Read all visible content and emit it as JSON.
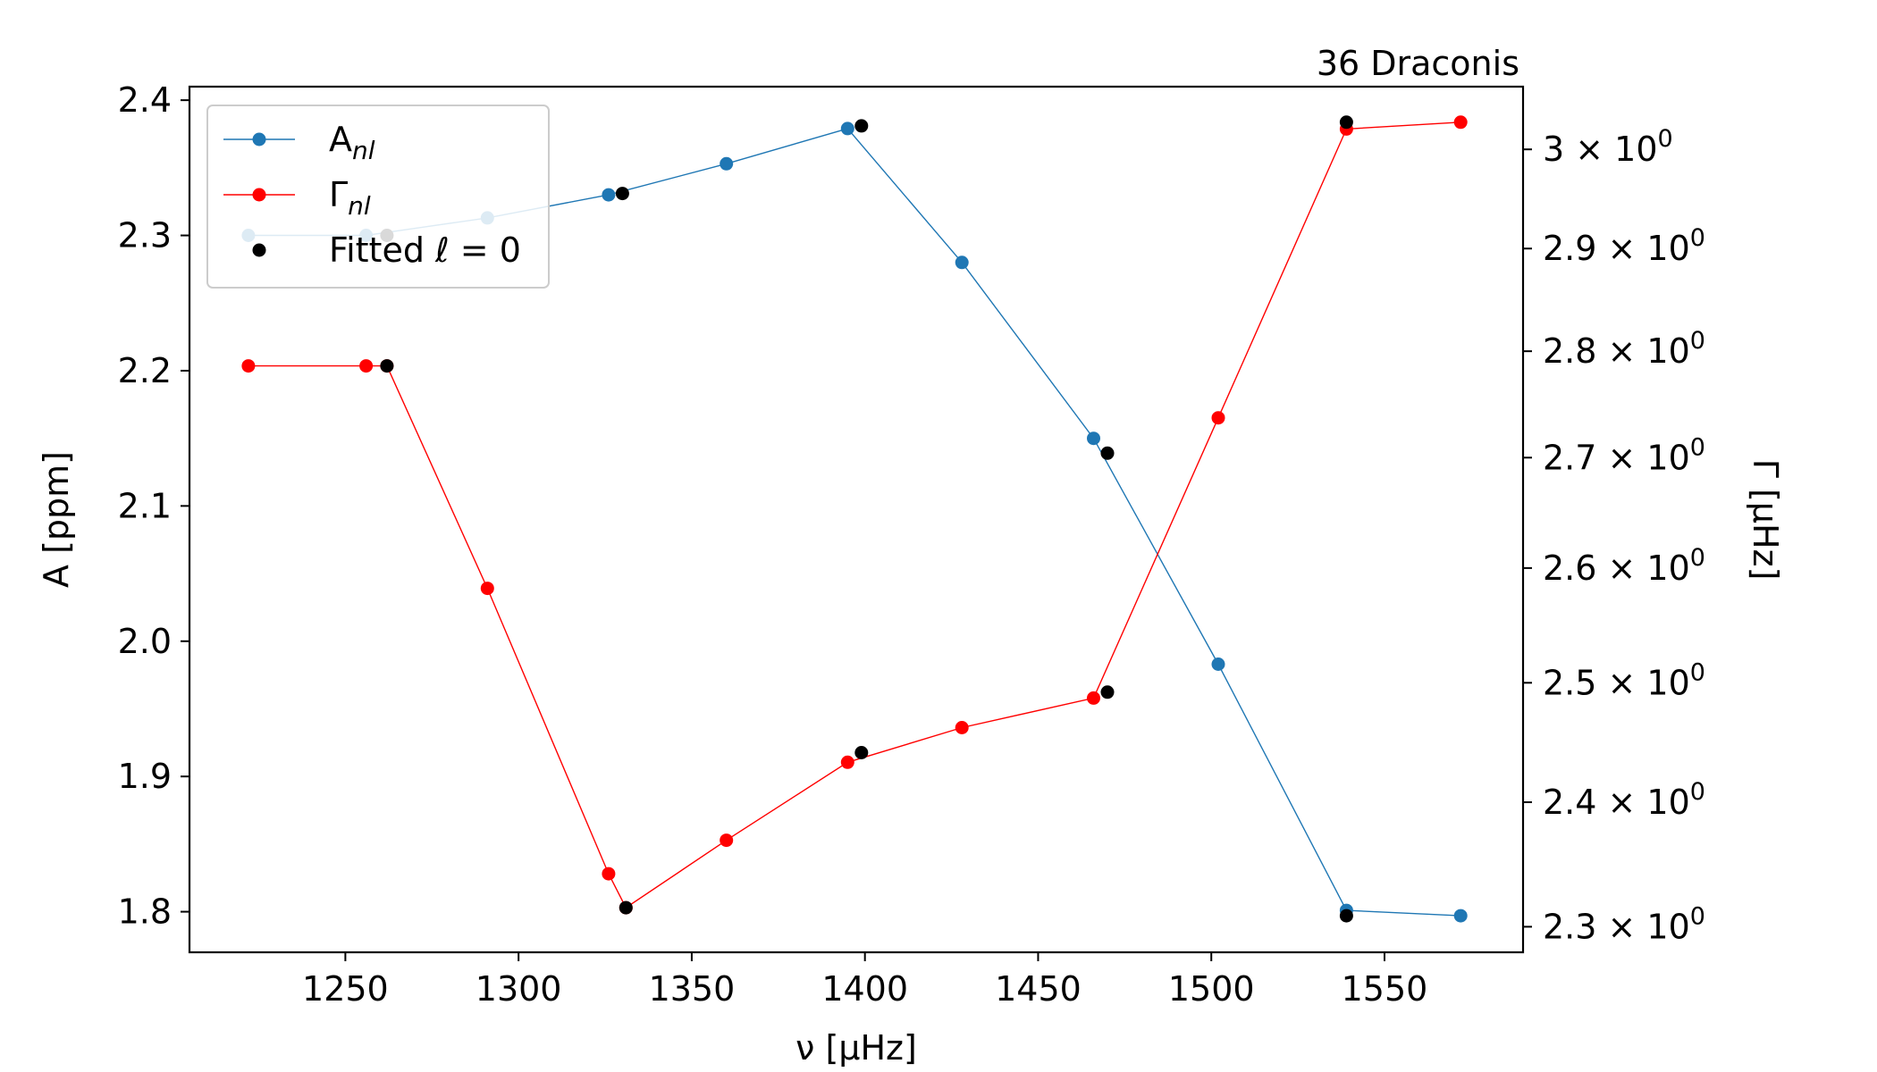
{
  "chart_data": {
    "type": "line",
    "title": "36 Draconis",
    "xlabel": "ν [μHz]",
    "ylabel_left": "A [ppm]",
    "ylabel_right": "Γ [μHz]",
    "xlim": [
      1205,
      1590
    ],
    "ylim_left": [
      1.77,
      2.41
    ],
    "ylim_right": [
      2.28,
      3.065
    ],
    "right_axis_scale": "log",
    "x_ticks": [
      1250,
      1300,
      1350,
      1400,
      1450,
      1500,
      1550
    ],
    "y_ticks_left": [
      "2.4",
      "2.3",
      "2.2",
      "2.1",
      "2.0",
      "1.9",
      "1.8"
    ],
    "y_ticks_right": [
      {
        "value": 3.0,
        "mantissa": "3"
      },
      {
        "value": 2.9,
        "mantissa": "2.9"
      },
      {
        "value": 2.8,
        "mantissa": "2.8"
      },
      {
        "value": 2.7,
        "mantissa": "2.7"
      },
      {
        "value": 2.6,
        "mantissa": "2.6"
      },
      {
        "value": 2.5,
        "mantissa": "2.5"
      },
      {
        "value": 2.4,
        "mantissa": "2.4"
      },
      {
        "value": 2.3,
        "mantissa": "2.3"
      }
    ],
    "tick_multiplier": "× 10",
    "tick_exponent": "0",
    "grid": false,
    "legend_position": "upper-left",
    "series": [
      {
        "name": "A",
        "subscript": "nl",
        "axis": "left",
        "color": "#1f77b4",
        "points": [
          [
            1222,
            2.3
          ],
          [
            1256,
            2.3
          ],
          [
            1291,
            2.313
          ],
          [
            1326,
            2.33
          ],
          [
            1360,
            2.353
          ],
          [
            1395,
            2.379
          ],
          [
            1428,
            2.28
          ],
          [
            1466,
            2.15
          ],
          [
            1502,
            1.983
          ],
          [
            1539,
            1.801
          ],
          [
            1572,
            1.797
          ]
        ]
      },
      {
        "name": "Γ",
        "subscript": "nl",
        "axis": "right",
        "color": "#ff0000",
        "points": [
          [
            1222,
            2.786
          ],
          [
            1256,
            2.786
          ],
          [
            1262,
            2.786
          ],
          [
            1291,
            2.582
          ],
          [
            1326,
            2.342
          ],
          [
            1331,
            2.315
          ],
          [
            1360,
            2.369
          ],
          [
            1395,
            2.433
          ],
          [
            1428,
            2.462
          ],
          [
            1466,
            2.487
          ],
          [
            1502,
            2.737
          ],
          [
            1539,
            3.021
          ],
          [
            1572,
            3.028
          ]
        ]
      },
      {
        "name": "Fitted",
        "suffix": "ℓ = 0",
        "axis": "left",
        "color": "#000000",
        "points": [
          [
            1262,
            2.3
          ],
          [
            1330,
            2.331
          ],
          [
            1399,
            2.381
          ],
          [
            1470,
            2.139
          ],
          [
            1539,
            1.797
          ]
        ]
      },
      {
        "name": "Fitted",
        "suffix": "ℓ = 0",
        "axis": "right",
        "color": "#000000",
        "points": [
          [
            1262,
            2.786
          ],
          [
            1331,
            2.315
          ],
          [
            1399,
            2.441
          ],
          [
            1470,
            2.492
          ],
          [
            1539,
            3.028
          ]
        ]
      }
    ],
    "legend": [
      {
        "label": "A",
        "sub": "nl",
        "color": "#1f77b4",
        "line": true
      },
      {
        "label": "Γ",
        "sub": "nl",
        "color": "#ff0000",
        "line": true
      },
      {
        "label": "Fitted ℓ = 0",
        "color": "#000000",
        "line": false
      }
    ]
  }
}
